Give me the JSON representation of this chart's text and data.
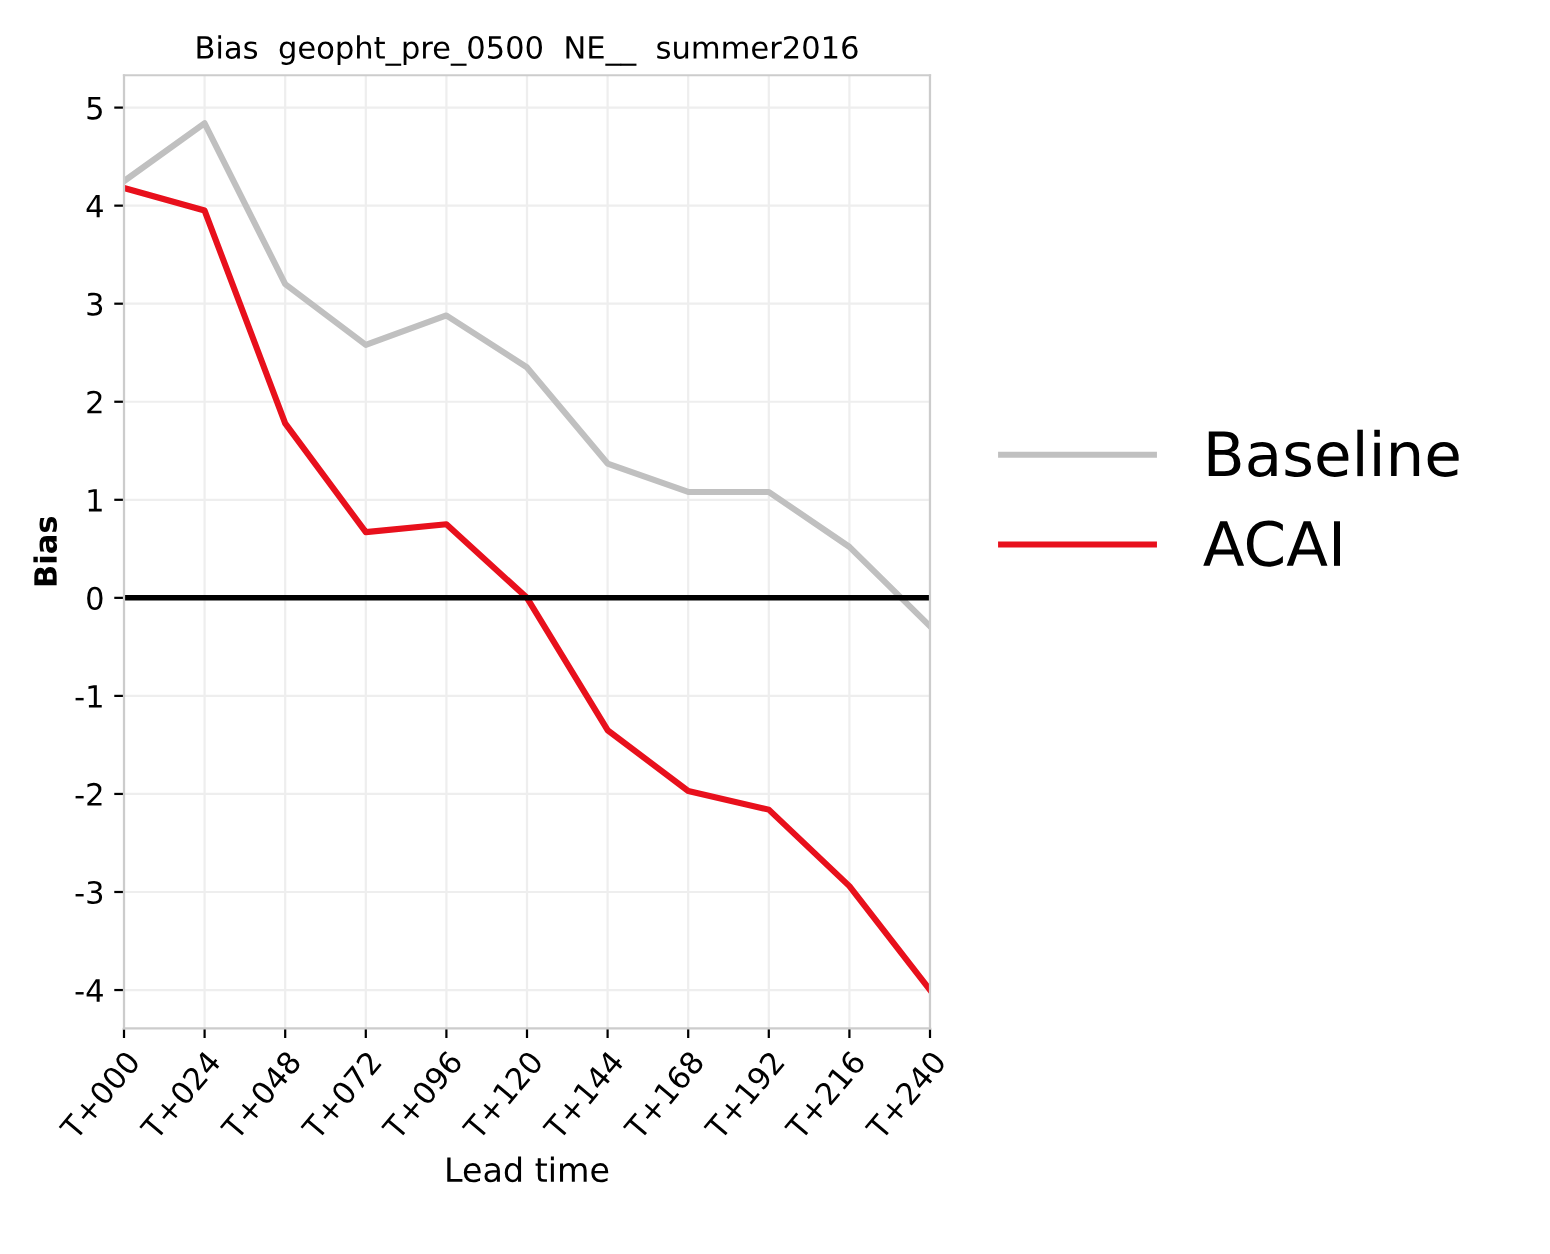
{
  "chart_data": {
    "type": "line",
    "title": "Bias  geopht_pre_0500  NE__  summer2016",
    "xlabel": "Lead time",
    "ylabel": "Bias",
    "categories": [
      "T+000",
      "T+024",
      "T+048",
      "T+072",
      "T+096",
      "T+120",
      "T+144",
      "T+168",
      "T+192",
      "T+216",
      "T+240"
    ],
    "series": [
      {
        "name": "Baseline",
        "color": "#c0c0c0",
        "values": [
          4.25,
          4.84,
          3.2,
          2.58,
          2.88,
          2.35,
          1.37,
          1.08,
          1.08,
          0.52,
          -0.29
        ]
      },
      {
        "name": "ACAI",
        "color": "#e8101c",
        "values": [
          4.18,
          3.95,
          1.78,
          0.67,
          0.75,
          0.0,
          -1.35,
          -1.97,
          -2.16,
          -2.94,
          -4.0
        ]
      }
    ],
    "ylim": [
      -4.39,
      5.33
    ],
    "yticks": [
      -4,
      -3,
      -2,
      -1,
      0,
      1,
      2,
      3,
      4,
      5
    ],
    "ref_lines": [
      {
        "axis": "y",
        "value": 0,
        "color": "#000000"
      }
    ],
    "grid": true,
    "legend": "right"
  }
}
